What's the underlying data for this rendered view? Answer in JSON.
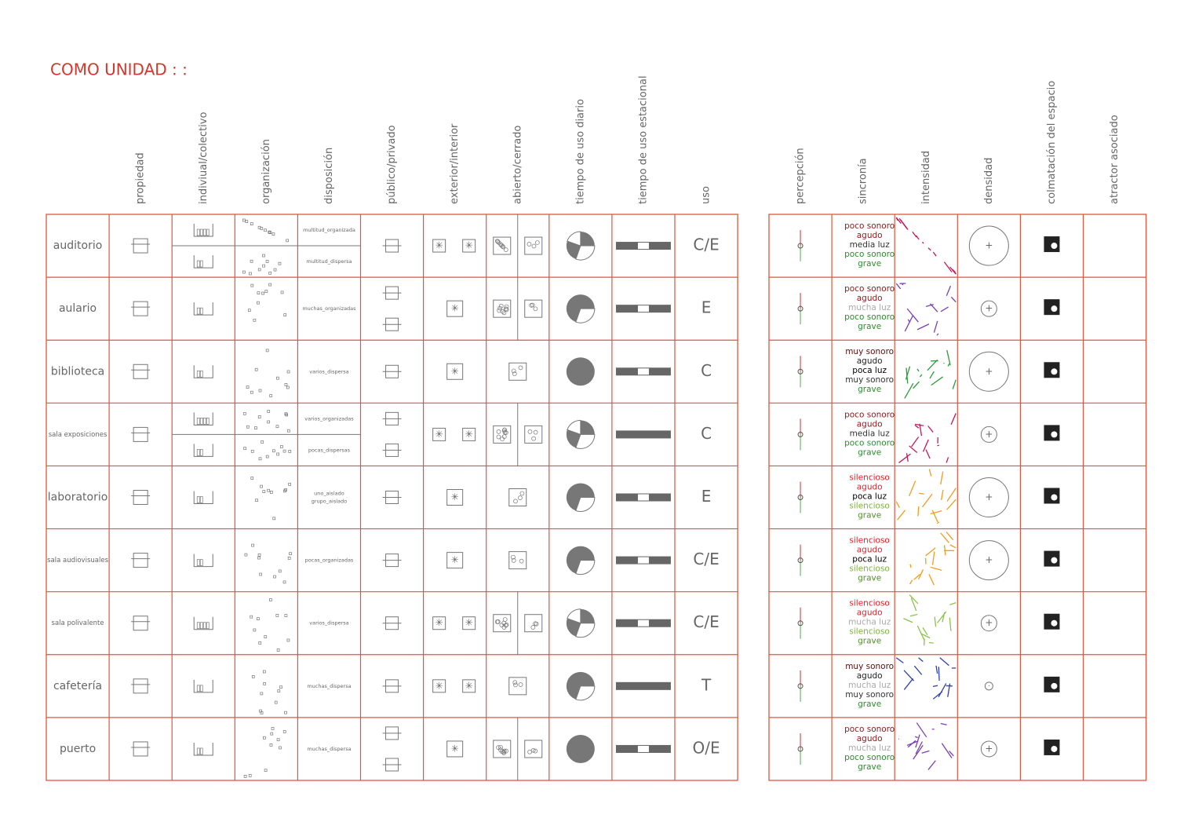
{
  "title": "COMO UNIDAD : :",
  "left_headers": [
    "propiedad",
    "indiviual/colectivo",
    "organización",
    "disposición",
    "público/privado",
    "exterior/interior",
    "abierto/cerrado",
    "tiempo de uso diario",
    "tiempo de uso estacional",
    "uso"
  ],
  "right_headers": [
    "percepción",
    "sincronía",
    "intensidad",
    "densidad",
    "colmatación del espacio",
    "atractor asociado"
  ],
  "rows": [
    {
      "name": "auditorio",
      "split": true,
      "disposicion": [
        "multitud_organizada",
        "multitud_dispersa"
      ],
      "uso": "C/E",
      "intensity_color": "#c2185b",
      "sincronia": [
        {
          "text": "poco sonoro",
          "color": "#8b1a1a"
        },
        {
          "text": "agudo",
          "color": "#8b1a1a"
        },
        {
          "text": "media luz",
          "color": "#333333"
        },
        {
          "text": "poco sonoro",
          "color": "#2e8b2e"
        },
        {
          "text": "grave",
          "color": "#2e8b2e"
        }
      ]
    },
    {
      "name": "aulario",
      "split": false,
      "disposicion": [
        "muchas_organizadas"
      ],
      "uso": "E",
      "intensity_color": "#7b3fb0",
      "sincronia": [
        {
          "text": "poco sonoro",
          "color": "#8b1a1a"
        },
        {
          "text": "agudo",
          "color": "#8b1a1a"
        },
        {
          "text": "mucha luz",
          "color": "#aaaaaa"
        },
        {
          "text": "poco sonoro",
          "color": "#2e8b2e"
        },
        {
          "text": "grave",
          "color": "#2e8b2e"
        }
      ]
    },
    {
      "name": "biblioteca",
      "split": false,
      "disposicion": [
        "varios_dispersa"
      ],
      "uso": "C",
      "intensity_color": "#2e9b3a",
      "sincronia": [
        {
          "text": "muy sonoro",
          "color": "#5a1010"
        },
        {
          "text": "agudo",
          "color": "#222222"
        },
        {
          "text": "poca luz",
          "color": "#000000"
        },
        {
          "text": "muy sonoro",
          "color": "#333333"
        },
        {
          "text": "grave",
          "color": "#2e8b2e"
        }
      ]
    },
    {
      "name": "sala exposiciones",
      "split": true,
      "disposicion": [
        "varios_organizadas",
        "pocas_dispersas"
      ],
      "uso": "C",
      "intensity_color": "#c2185b",
      "sincronia": [
        {
          "text": "poco sonoro",
          "color": "#8b1a1a"
        },
        {
          "text": "agudo",
          "color": "#8b1a1a"
        },
        {
          "text": "media luz",
          "color": "#333333"
        },
        {
          "text": "poco sonoro",
          "color": "#2e8b2e"
        },
        {
          "text": "grave",
          "color": "#2e8b2e"
        }
      ]
    },
    {
      "name": "laboratorio",
      "split": false,
      "disposicion": [
        "uno_aislado",
        "grupo_aislado"
      ],
      "uso": "E",
      "intensity_color": "#f39c1f",
      "sincronia": [
        {
          "text": "silencioso",
          "color": "#e02020"
        },
        {
          "text": "agudo",
          "color": "#c03030"
        },
        {
          "text": "poca luz",
          "color": "#000000"
        },
        {
          "text": "silencioso",
          "color": "#7cb342"
        },
        {
          "text": "grave",
          "color": "#558b2f"
        }
      ]
    },
    {
      "name": "sala audiovisuales",
      "split": false,
      "disposicion": [
        "pocas_organizadas"
      ],
      "uso": "C/E",
      "intensity_color": "#f39c1f",
      "sincronia": [
        {
          "text": "silencioso",
          "color": "#e02020"
        },
        {
          "text": "agudo",
          "color": "#c03030"
        },
        {
          "text": "poca luz",
          "color": "#000000"
        },
        {
          "text": "silencioso",
          "color": "#7cb342"
        },
        {
          "text": "grave",
          "color": "#558b2f"
        }
      ]
    },
    {
      "name": "sala polivalente",
      "split": false,
      "disposicion": [
        "varios_dispersa"
      ],
      "uso": "C/E",
      "intensity_color": "#8bc34a",
      "sincronia": [
        {
          "text": "silencioso",
          "color": "#e02020"
        },
        {
          "text": "agudo",
          "color": "#c03030"
        },
        {
          "text": "mucha luz",
          "color": "#aaaaaa"
        },
        {
          "text": "silencioso",
          "color": "#7cb342"
        },
        {
          "text": "grave",
          "color": "#558b2f"
        }
      ]
    },
    {
      "name": "cafetería",
      "split": false,
      "disposicion": [
        "muchas_dispersa"
      ],
      "uso": "T",
      "intensity_color": "#3040b0",
      "sincronia": [
        {
          "text": "muy sonoro",
          "color": "#5a1010"
        },
        {
          "text": "agudo",
          "color": "#222222"
        },
        {
          "text": "mucha luz",
          "color": "#aaaaaa"
        },
        {
          "text": "muy sonoro",
          "color": "#333333"
        },
        {
          "text": "grave",
          "color": "#2e8b2e"
        }
      ]
    },
    {
      "name": "puerto",
      "split": false,
      "disposicion": [
        "muchas_dispersa"
      ],
      "uso": "O/E",
      "intensity_color": "#7b3fb0",
      "sincronia": [
        {
          "text": "poco sonoro",
          "color": "#8b1a1a"
        },
        {
          "text": "agudo",
          "color": "#8b1a1a"
        },
        {
          "text": "mucha luz",
          "color": "#aaaaaa"
        },
        {
          "text": "poco sonoro",
          "color": "#2e8b2e"
        },
        {
          "text": "grave",
          "color": "#2e8b2e"
        }
      ]
    }
  ]
}
